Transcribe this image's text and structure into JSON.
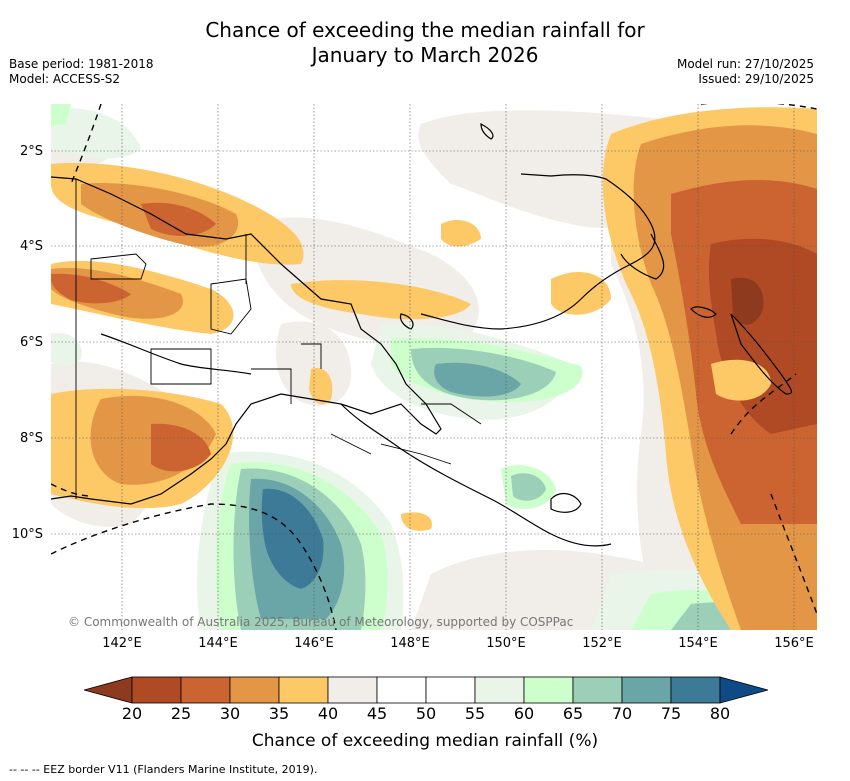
{
  "header": {
    "title_line1": "Chance of exceeding the median rainfall for",
    "title_line2": "January to March 2026",
    "base_period": "Base period: 1981-2018",
    "model": "Model: ACCESS-S2",
    "model_run": "Model run: 27/10/2025",
    "issued": "Issued: 29/10/2025"
  },
  "map": {
    "latitudes": [
      "2°S",
      "4°S",
      "6°S",
      "8°S",
      "10°S"
    ],
    "longitudes": [
      "142°E",
      "144°E",
      "146°E",
      "148°E",
      "150°E",
      "152°E",
      "154°E",
      "156°E"
    ],
    "copyright": "© Commonwealth of Australia 2025, Bureau of Meteorology, supported by COSPPac"
  },
  "colorbar": {
    "ticks": [
      "20",
      "25",
      "30",
      "35",
      "40",
      "45",
      "50",
      "55",
      "60",
      "65",
      "70",
      "75",
      "80"
    ],
    "colors": {
      "below_20": "#8e3a1f",
      "20_25": "#b04a24",
      "25_30": "#cc6432",
      "30_35": "#e39646",
      "35_40": "#fdc866",
      "40_45": "#f1ede8",
      "45_50": "#ffffff",
      "50_55": "#ffffff",
      "55_60": "#e8f5e8",
      "60_65": "#ccffcc",
      "65_70": "#9ccfb8",
      "70_75": "#6aa6a8",
      "75_80": "#3d7a98",
      "above_80": "#0d4a86"
    },
    "label": "Chance of exceeding median rainfall (%)"
  },
  "footer": {
    "eez_legend": "--  --  -- EEZ border V11 (Flanders Marine Institute, 2019)."
  }
}
